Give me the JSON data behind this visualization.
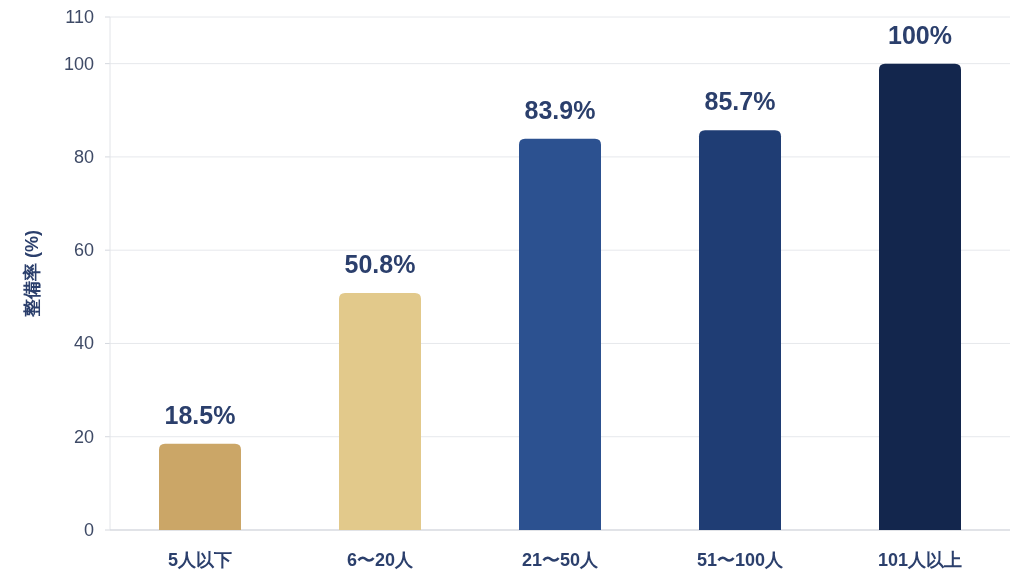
{
  "chart_data": {
    "type": "bar",
    "ylabel": "整備率 (%)",
    "categories": [
      "5人以下",
      "6〜20人",
      "21〜50人",
      "51〜100人",
      "101人以上"
    ],
    "values": [
      18.5,
      50.8,
      83.9,
      85.7,
      100
    ],
    "colors": [
      "#cba667",
      "#e2c98b",
      "#2c5190",
      "#1f3d74",
      "#13264d"
    ],
    "value_labels": [
      "18.5%",
      "50.8%",
      "83.9%",
      "85.7%",
      "100%"
    ],
    "ylim": [
      0,
      110
    ],
    "yticks": [
      0,
      20,
      40,
      60,
      80,
      100,
      110
    ],
    "grid": "y"
  }
}
